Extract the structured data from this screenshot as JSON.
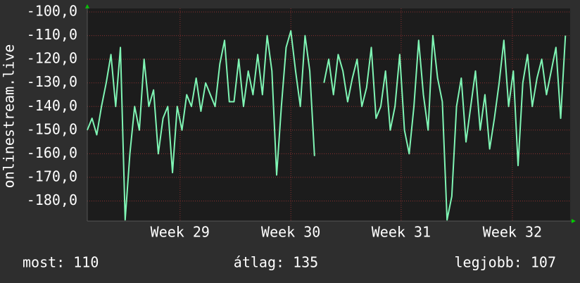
{
  "chart_data": {
    "type": "line",
    "y_label": "onlinestream.live",
    "x": [
      0,
      1,
      2,
      3,
      4,
      5,
      6,
      7,
      8,
      9,
      10,
      11,
      12,
      13,
      14,
      15,
      16,
      17,
      18,
      19,
      20,
      21,
      22,
      23,
      24,
      25,
      26,
      27,
      28,
      29,
      30,
      31,
      32,
      33,
      34,
      35,
      36,
      37,
      38,
      39,
      40,
      41,
      42,
      43,
      44,
      45,
      46,
      47,
      48,
      49,
      50,
      51,
      52,
      53,
      54,
      55,
      56,
      57,
      58,
      59,
      60,
      61,
      62,
      63,
      64,
      65,
      66,
      67,
      68,
      69,
      70,
      71,
      72,
      73,
      74,
      75,
      76,
      77,
      78,
      79,
      80,
      81,
      82,
      83,
      84,
      85,
      86,
      87,
      88,
      89,
      90,
      91,
      92,
      93,
      94,
      95,
      96,
      97,
      98,
      99,
      100,
      101
    ],
    "series": [
      {
        "name": "onlinestream.live",
        "color": "#7ff5b4",
        "values": [
          -150,
          -145,
          -152,
          -140,
          -130,
          -118,
          -140,
          -115,
          -188,
          -160,
          -140,
          -150,
          -120,
          -140,
          -133,
          -160,
          -145,
          -140,
          -168,
          -140,
          -150,
          -135,
          -140,
          -128,
          -142,
          -130,
          -135,
          -140,
          -122,
          -112,
          -138,
          -138,
          -120,
          -140,
          -125,
          -135,
          -118,
          -135,
          -110,
          -125,
          -169,
          -140,
          -115,
          -108,
          -125,
          -140,
          -110,
          -125,
          -161,
          null,
          -130,
          -120,
          -135,
          -118,
          -125,
          -138,
          -128,
          -120,
          -140,
          -132,
          -115,
          -145,
          -140,
          -125,
          -150,
          -140,
          -118,
          -150,
          -160,
          -140,
          -112,
          -135,
          -150,
          -110,
          -128,
          -138,
          -188,
          -178,
          -140,
          -128,
          -155,
          -140,
          -125,
          -150,
          -135,
          -158,
          -145,
          -130,
          -112,
          -140,
          -125,
          -165,
          -130,
          -118,
          -140,
          -128,
          -120,
          -135,
          -125,
          -115,
          -145,
          -110
        ]
      }
    ],
    "xlim": [
      0,
      102
    ],
    "xticks": [
      {
        "value": 19.6,
        "label": "Week 29"
      },
      {
        "value": 43.0,
        "label": "Week 30"
      },
      {
        "value": 66.3,
        "label": "Week 31"
      },
      {
        "value": 89.8,
        "label": "Week 32"
      }
    ],
    "ylim": [
      -188.5,
      -98.5
    ],
    "yticks": [
      {
        "value": -100,
        "label": "-100,0"
      },
      {
        "value": -110,
        "label": "-110,0"
      },
      {
        "value": -120,
        "label": "-120,0"
      },
      {
        "value": -130,
        "label": "-130,0"
      },
      {
        "value": -140,
        "label": "-140,0"
      },
      {
        "value": -150,
        "label": "-150,0"
      },
      {
        "value": -160,
        "label": "-160,0"
      },
      {
        "value": -170,
        "label": "-170,0"
      },
      {
        "value": -180,
        "label": "-180,0"
      }
    ],
    "grid": true,
    "footer": [
      "most: 110",
      "átlag: 135",
      "legjobb: 107"
    ]
  }
}
